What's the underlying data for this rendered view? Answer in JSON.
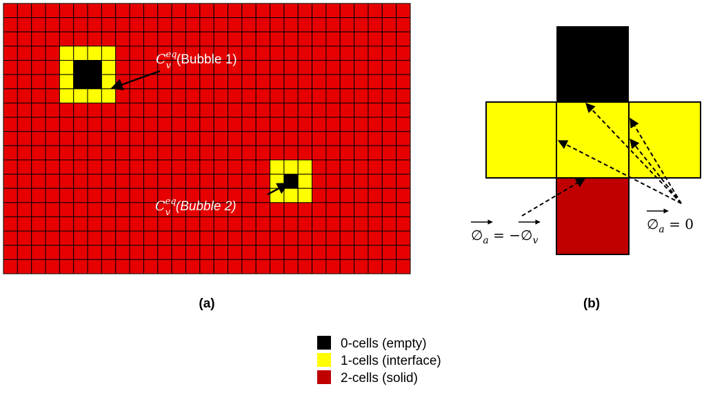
{
  "panel_a": {
    "caption": "(a)",
    "bubble_1": {
      "symbol": "C",
      "sub": "v",
      "sup": "eq",
      "text": "(Bubble 1)"
    },
    "bubble_2": {
      "symbol": "C",
      "sub": "v",
      "sup": "eq",
      "text": "(Bubble 2)"
    }
  },
  "panel_b": {
    "caption": "(b)",
    "formula_left": {
      "lhs": "∅",
      "lhs_sub": "a",
      "op": " = −",
      "rhs": "∅",
      "rhs_sub": "v"
    },
    "formula_right": {
      "lhs": "∅",
      "lhs_sub": "a",
      "op": " = 0"
    }
  },
  "legend": [
    "0-cells (empty)",
    "1-cells (interface)",
    "2-cells (solid)"
  ]
}
